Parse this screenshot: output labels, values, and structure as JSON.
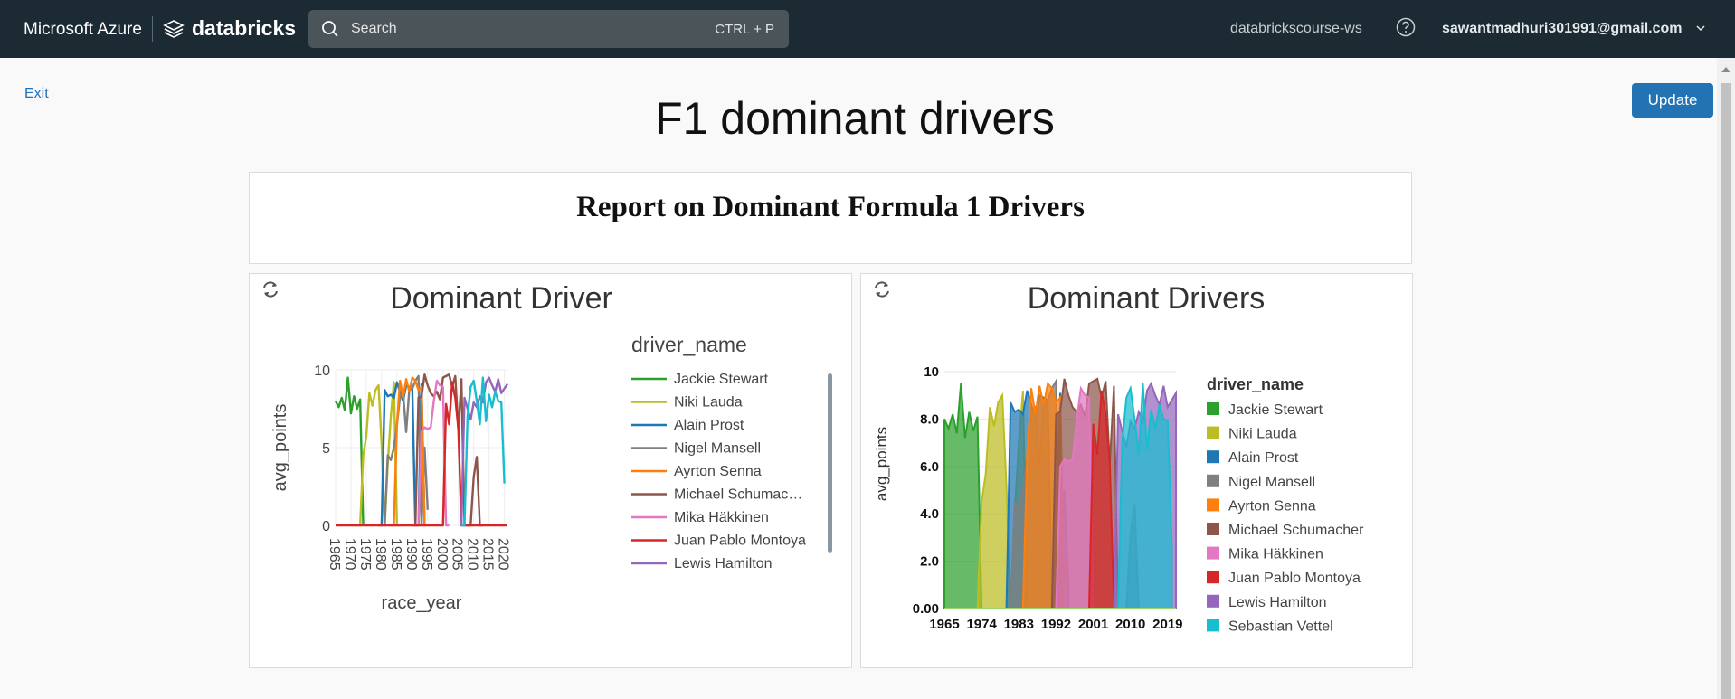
{
  "topbar": {
    "brand_ms": "Microsoft Azure",
    "brand_db": "databricks",
    "search_placeholder": "Search",
    "search_shortcut": "CTRL + P",
    "workspace": "databrickscourse-ws",
    "user": "sawantmadhuri301991@gmail.com"
  },
  "page": {
    "exit": "Exit",
    "update": "Update",
    "title": "F1 dominant drivers",
    "report_title": "Report on Dominant Formula 1 Drivers"
  },
  "colors": {
    "topbar": "#1b2a33",
    "accent": "#2272b4"
  },
  "chart_data": [
    {
      "type": "line",
      "title": "Dominant Driver",
      "xlabel": "race_year",
      "ylabel": "avg_points",
      "legend_title": "driver_name",
      "legend_position": "right",
      "xlim": [
        1965,
        2021
      ],
      "ylim": [
        0,
        10
      ],
      "xticks": [
        1965,
        1970,
        1975,
        1980,
        1985,
        1990,
        1995,
        2000,
        2005,
        2010,
        2015,
        2020
      ],
      "yticks": [
        0,
        5,
        10
      ],
      "legend_entries": [
        "Jackie Stewart",
        "Niki Lauda",
        "Alain Prost",
        "Nigel Mansell",
        "Ayrton Senna",
        "Michael Schumac…",
        "Mika Häkkinen",
        "Juan Pablo Montoya",
        "Lewis Hamilton"
      ],
      "series": [
        {
          "name": "Jackie Stewart",
          "color": "#2ca02c",
          "x": [
            1965,
            1966,
            1967,
            1968,
            1969,
            1970,
            1971,
            1972,
            1973,
            1974
          ],
          "y": [
            8,
            7.6,
            8.2,
            7.4,
            9.5,
            7.2,
            8.3,
            7.5,
            8.1,
            0
          ]
        },
        {
          "name": "Niki Lauda",
          "color": "#bcbd22",
          "x": [
            1971,
            1972,
            1973,
            1974,
            1975,
            1976,
            1977,
            1978,
            1979,
            1980,
            1981,
            1982,
            1983,
            1984,
            1985,
            1986
          ],
          "y": [
            0,
            0,
            0,
            4.5,
            5.7,
            8.5,
            7.7,
            8.7,
            9,
            5.2,
            0,
            4,
            7,
            9.2,
            0,
            0
          ]
        },
        {
          "name": "Alain Prost",
          "color": "#1f77b4",
          "x": [
            1979,
            1980,
            1981,
            1982,
            1983,
            1984,
            1985,
            1986,
            1987,
            1988,
            1989,
            1990,
            1991,
            1992,
            1993,
            1994
          ],
          "y": [
            0,
            0,
            8.7,
            8.3,
            8.4,
            8.2,
            9.2,
            8.6,
            8,
            9,
            8.9,
            8.8,
            0,
            0,
            9.1,
            0
          ]
        },
        {
          "name": "Nigel Mansell",
          "color": "#7f7f7f",
          "x": [
            1980,
            1981,
            1982,
            1983,
            1984,
            1985,
            1986,
            1987,
            1988,
            1989,
            1990,
            1991,
            1992,
            1993,
            1994,
            1995
          ],
          "y": [
            0,
            0,
            4.5,
            4.2,
            5,
            6.5,
            8.3,
            8.5,
            6,
            8.7,
            8.8,
            9.3,
            9.6,
            0,
            5,
            1
          ]
        },
        {
          "name": "Ayrton Senna",
          "color": "#ff7f0e",
          "x": [
            1983,
            1984,
            1985,
            1986,
            1987,
            1988,
            1989,
            1990,
            1991,
            1992,
            1993,
            1994
          ],
          "y": [
            0,
            0,
            6.5,
            9.3,
            8.2,
            9.4,
            8.6,
            9.5,
            9.3,
            8.7,
            8.9,
            0
          ]
        },
        {
          "name": "Michael Schumacher",
          "color": "#8c564b",
          "x": [
            1990,
            1991,
            1992,
            1993,
            1994,
            1995,
            1996,
            1997,
            1998,
            1999,
            2000,
            2001,
            2002,
            2003,
            2004,
            2005,
            2006,
            2007,
            2008,
            2009,
            2010,
            2011,
            2012,
            2013
          ],
          "y": [
            0,
            0,
            8.2,
            8.3,
            9.7,
            9,
            8.5,
            8.3,
            8.6,
            8.1,
            9.5,
            9.6,
            9.7,
            8.9,
            9.6,
            6.1,
            9.4,
            0,
            0,
            0,
            3.1,
            4.4,
            0,
            0
          ]
        },
        {
          "name": "Mika Häkkinen",
          "color": "#e377c2",
          "x": [
            1991,
            1992,
            1993,
            1994,
            1995,
            1996,
            1997,
            1998,
            1999,
            2000,
            2001,
            2002
          ],
          "y": [
            0,
            0,
            6,
            6.3,
            6.2,
            6.3,
            8,
            9.3,
            9,
            8.9,
            0,
            0
          ]
        },
        {
          "name": "Juan Pablo Montoya",
          "color": "#d62728",
          "x": [
            1965,
            2000,
            2001,
            2002,
            2003,
            2004,
            2005,
            2006,
            2007,
            2008,
            2021
          ],
          "y": [
            0,
            0,
            7.8,
            6.5,
            9.2,
            8.2,
            6.2,
            0,
            0,
            0,
            0
          ]
        },
        {
          "name": "Lewis Hamilton",
          "color": "#9467bd",
          "x": [
            2006,
            2007,
            2008,
            2009,
            2010,
            2011,
            2012,
            2013,
            2014,
            2015,
            2016,
            2017,
            2018,
            2019,
            2020,
            2021
          ],
          "y": [
            0,
            8.2,
            7.5,
            6.8,
            7.9,
            7.6,
            8.3,
            7.9,
            9.2,
            9.5,
            9,
            8.6,
            9.4,
            8.5,
            8.8,
            9.1
          ]
        },
        {
          "name": "Sebastian Vettel",
          "color": "#17becf",
          "x": [
            2006,
            2007,
            2008,
            2009,
            2010,
            2011,
            2012,
            2013,
            2014,
            2015,
            2016,
            2017,
            2018,
            2019,
            2020
          ],
          "y": [
            0,
            0,
            7,
            8.9,
            9.3,
            8,
            6.5,
            9.5,
            6.7,
            8.4,
            7.6,
            8.6,
            8,
            7.9,
            2.7
          ]
        }
      ]
    },
    {
      "type": "area",
      "title": "Dominant Drivers",
      "ylabel": "avg_points",
      "legend_title": "driver_name",
      "legend_position": "right",
      "xlim": [
        1965,
        2021
      ],
      "ylim": [
        0,
        10
      ],
      "xticks": [
        "1965",
        "1974",
        "1983",
        "1992",
        "2001",
        "2010",
        "2019"
      ],
      "yticks": [
        "0.00",
        "2.0",
        "4.0",
        "6.0",
        "8.0",
        "10"
      ],
      "legend_entries": [
        "Jackie Stewart",
        "Niki Lauda",
        "Alain Prost",
        "Nigel Mansell",
        "Ayrton Senna",
        "Michael Schumacher",
        "Mika Häkkinen",
        "Juan Pablo Montoya",
        "Lewis Hamilton",
        "Sebastian Vettel"
      ]
    }
  ]
}
